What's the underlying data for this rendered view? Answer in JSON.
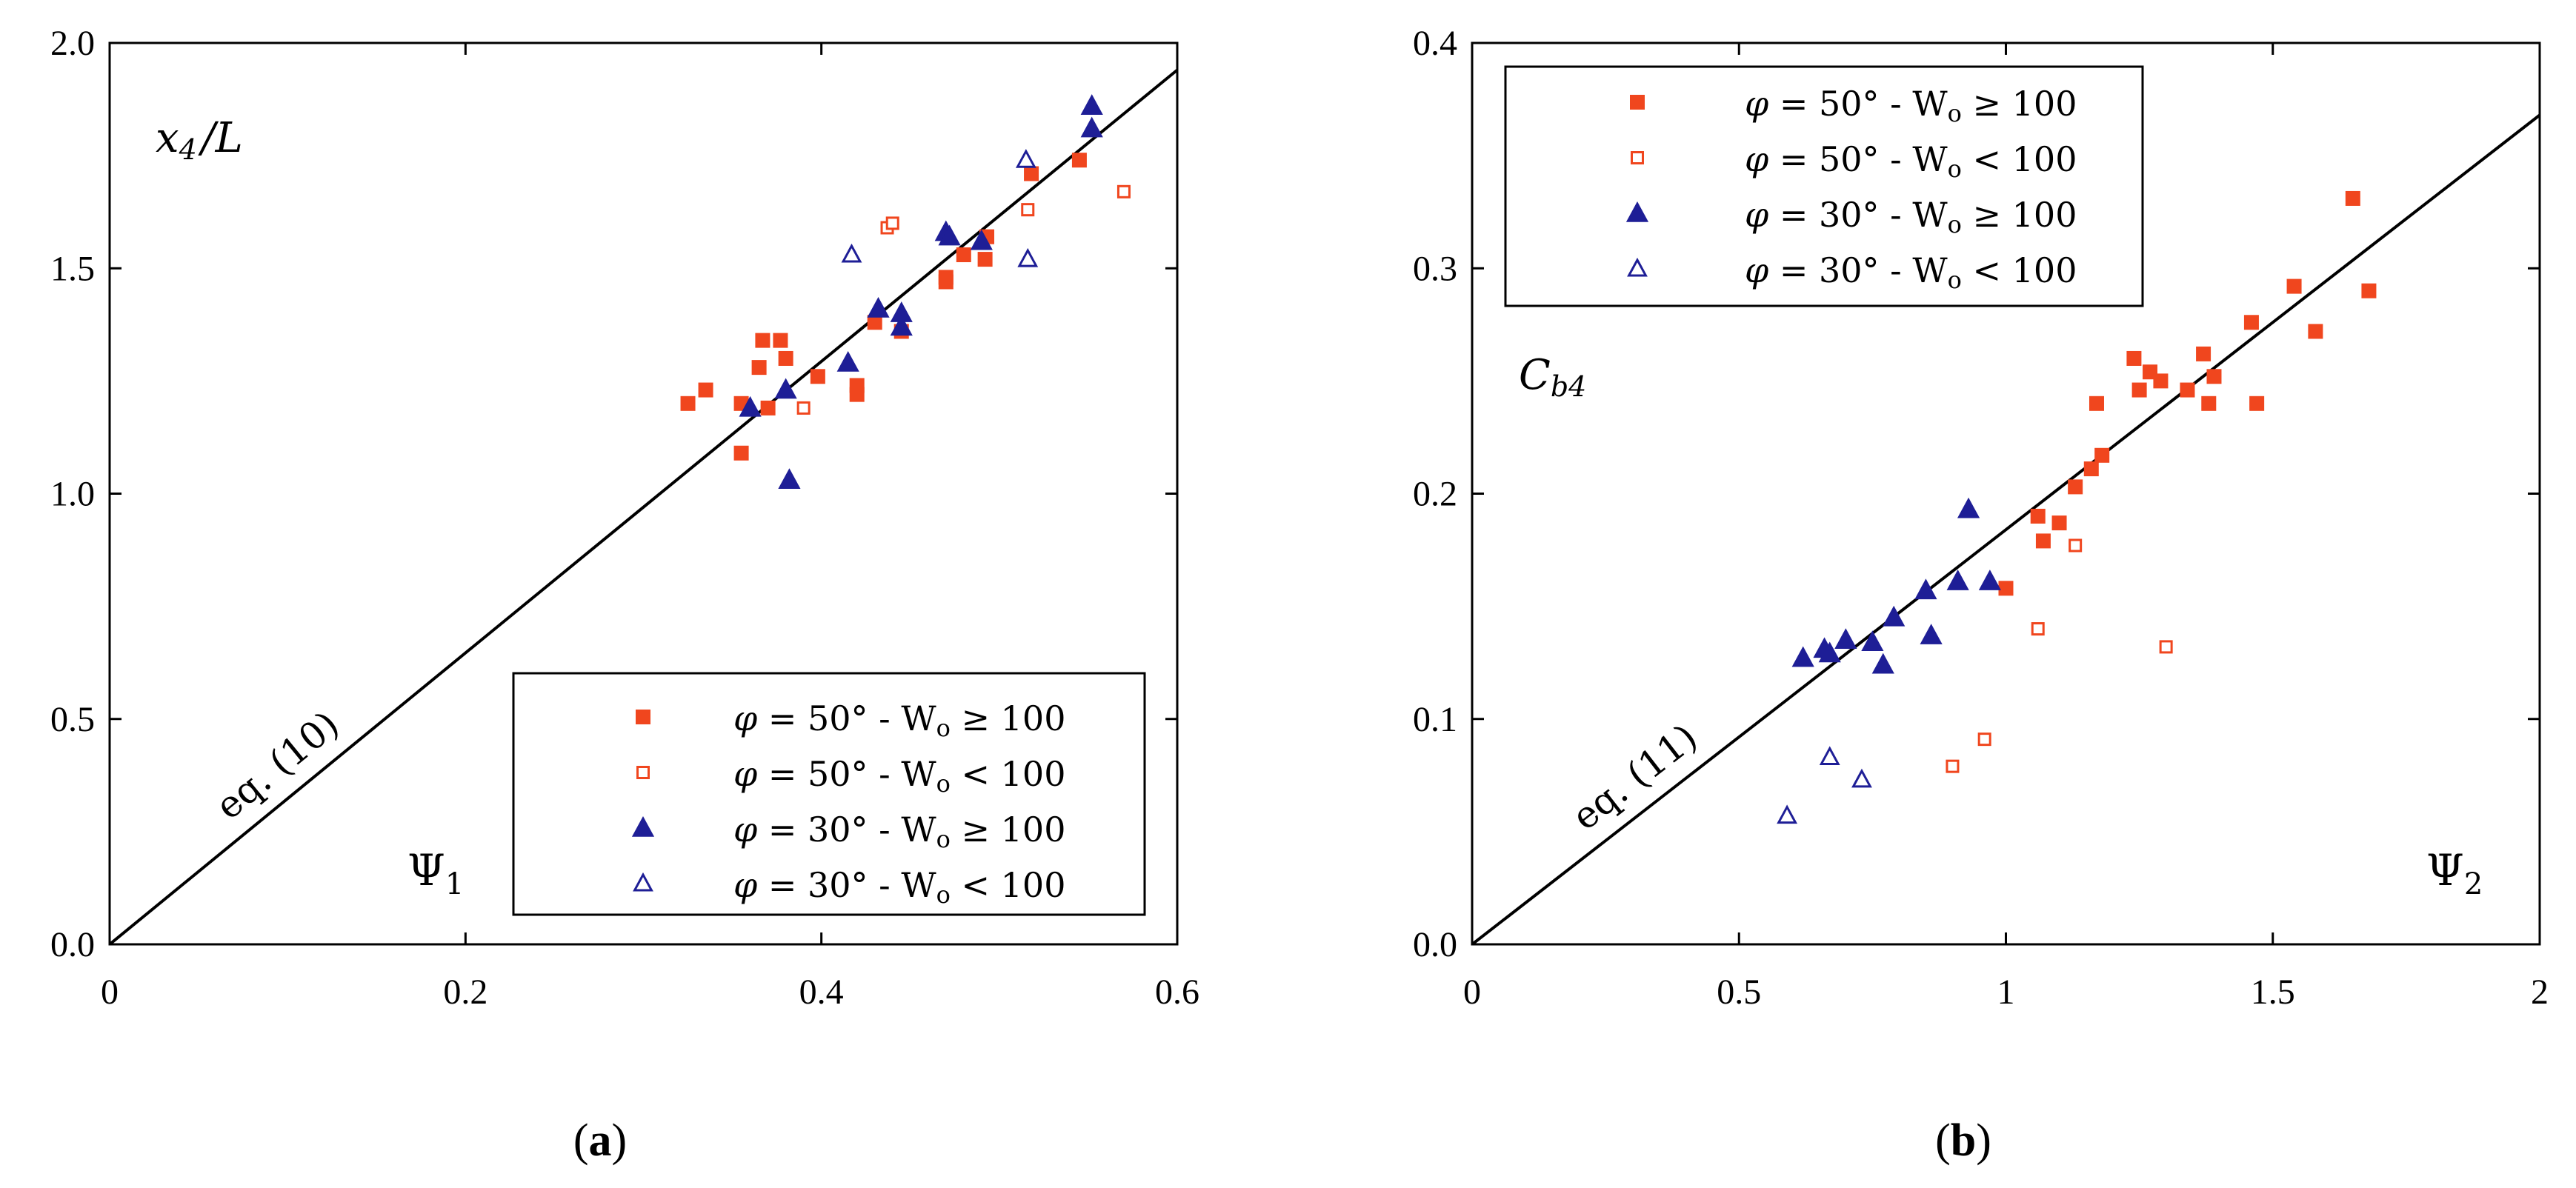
{
  "figure": {
    "panel_labels": [
      "(a)",
      "(b)"
    ],
    "colors": {
      "orange": "#f0461e",
      "blue": "#1e1e96",
      "line": "#000000"
    }
  },
  "chart_data": [
    {
      "type": "scatter",
      "panel": "(a)",
      "ylabel": "x4/L",
      "ylabel_main": "x",
      "ylabel_sub": "4",
      "ylabel_tail": "/L",
      "xlabel": "Ψ1",
      "xlabel_main": "Ψ",
      "xlabel_sub": "1",
      "xlim": [
        0,
        0.6
      ],
      "ylim": [
        0,
        2.0
      ],
      "xticks": [
        0,
        0.2,
        0.4,
        0.6
      ],
      "xtick_labels": [
        "0",
        "0.2",
        "0.4",
        "0.6"
      ],
      "yticks": [
        0,
        0.5,
        1.0,
        1.5,
        2.0
      ],
      "ytick_labels": [
        "0.0",
        "0.5",
        "1.0",
        "1.5",
        "2.0"
      ],
      "fit_line": {
        "label": "eq. (10)",
        "x": [
          0,
          0.6
        ],
        "y": [
          0,
          1.94
        ]
      },
      "legend_position": "bottom-right",
      "series": [
        {
          "name": "φ = 50° - Wo ≥ 100",
          "angle": "50°",
          "op": "≥",
          "marker": "square",
          "filled": true,
          "points": [
            [
              0.325,
              1.2
            ],
            [
              0.335,
              1.23
            ],
            [
              0.355,
              1.2
            ],
            [
              0.355,
              1.09
            ],
            [
              0.365,
              1.28
            ],
            [
              0.367,
              1.34
            ],
            [
              0.37,
              1.19
            ],
            [
              0.377,
              1.34
            ],
            [
              0.38,
              1.3
            ],
            [
              0.398,
              1.26
            ],
            [
              0.42,
              1.24
            ],
            [
              0.42,
              1.22
            ],
            [
              0.43,
              1.38
            ],
            [
              0.445,
              1.36
            ],
            [
              0.47,
              1.47
            ],
            [
              0.47,
              1.48
            ],
            [
              0.48,
              1.53
            ],
            [
              0.492,
              1.52
            ],
            [
              0.493,
              1.57
            ],
            [
              0.518,
              1.71
            ],
            [
              0.545,
              1.74
            ]
          ]
        },
        {
          "name": "φ = 50° - Wo < 100",
          "angle": "50°",
          "op": "<",
          "marker": "square",
          "filled": false,
          "points": [
            [
              0.39,
              1.19
            ],
            [
              0.437,
              1.59
            ],
            [
              0.44,
              1.6
            ],
            [
              0.516,
              1.63
            ],
            [
              0.57,
              1.67
            ]
          ]
        },
        {
          "name": "φ = 30° - Wo ≥ 100",
          "angle": "30°",
          "op": "≥",
          "marker": "triangle",
          "filled": true,
          "points": [
            [
              0.36,
              1.19
            ],
            [
              0.38,
              1.23
            ],
            [
              0.382,
              1.03
            ],
            [
              0.415,
              1.29
            ],
            [
              0.432,
              1.41
            ],
            [
              0.445,
              1.4
            ],
            [
              0.445,
              1.37
            ],
            [
              0.47,
              1.58
            ],
            [
              0.472,
              1.57
            ],
            [
              0.49,
              1.56
            ],
            [
              0.552,
              1.81
            ],
            [
              0.552,
              1.86
            ]
          ]
        },
        {
          "name": "φ = 30° - Wo < 100",
          "angle": "30°",
          "op": "<",
          "marker": "triangle",
          "filled": false,
          "points": [
            [
              0.417,
              1.53
            ],
            [
              0.515,
              1.74
            ],
            [
              0.516,
              1.52
            ]
          ]
        }
      ]
    },
    {
      "type": "scatter",
      "panel": "(b)",
      "ylabel": "Cb4",
      "ylabel_main": "C",
      "ylabel_sub": "b4",
      "ylabel_tail": "",
      "xlabel": "Ψ2",
      "xlabel_main": "Ψ",
      "xlabel_sub": "2",
      "xlim": [
        0,
        2
      ],
      "ylim": [
        0,
        0.4
      ],
      "xticks": [
        0,
        0.5,
        1,
        1.5,
        2
      ],
      "xtick_labels": [
        "0",
        "0.5",
        "1",
        "1.5",
        "2"
      ],
      "yticks": [
        0,
        0.1,
        0.2,
        0.3,
        0.4
      ],
      "ytick_labels": [
        "0.0",
        "0.1",
        "0.2",
        "0.3",
        "0.4"
      ],
      "fit_line": {
        "label": "eq. (11)",
        "x": [
          0,
          2
        ],
        "y": [
          0,
          0.368
        ]
      },
      "legend_position": "top-left",
      "series": [
        {
          "name": "φ = 50° - Wo ≥ 100",
          "angle": "50°",
          "op": "≥",
          "marker": "square",
          "filled": true,
          "points": [
            [
              1.0,
              0.158
            ],
            [
              1.06,
              0.19
            ],
            [
              1.07,
              0.179
            ],
            [
              1.1,
              0.187
            ],
            [
              1.13,
              0.203
            ],
            [
              1.16,
              0.211
            ],
            [
              1.18,
              0.217
            ],
            [
              1.17,
              0.24
            ],
            [
              1.24,
              0.26
            ],
            [
              1.25,
              0.246
            ],
            [
              1.27,
              0.254
            ],
            [
              1.29,
              0.25
            ],
            [
              1.34,
              0.246
            ],
            [
              1.37,
              0.262
            ],
            [
              1.38,
              0.24
            ],
            [
              1.39,
              0.252
            ],
            [
              1.46,
              0.276
            ],
            [
              1.47,
              0.24
            ],
            [
              1.54,
              0.292
            ],
            [
              1.58,
              0.272
            ],
            [
              1.65,
              0.331
            ],
            [
              1.68,
              0.29
            ]
          ]
        },
        {
          "name": "φ = 50° - Wo < 100",
          "angle": "50°",
          "op": "<",
          "marker": "square",
          "filled": false,
          "points": [
            [
              0.9,
              0.079
            ],
            [
              0.96,
              0.091
            ],
            [
              1.06,
              0.14
            ],
            [
              1.13,
              0.177
            ],
            [
              1.3,
              0.132
            ]
          ]
        },
        {
          "name": "φ = 30° - Wo ≥ 100",
          "angle": "30°",
          "op": "≥",
          "marker": "triangle",
          "filled": true,
          "points": [
            [
              0.62,
              0.127
            ],
            [
              0.66,
              0.131
            ],
            [
              0.67,
              0.129
            ],
            [
              0.7,
              0.135
            ],
            [
              0.75,
              0.134
            ],
            [
              0.77,
              0.124
            ],
            [
              0.79,
              0.145
            ],
            [
              0.85,
              0.157
            ],
            [
              0.86,
              0.137
            ],
            [
              0.91,
              0.161
            ],
            [
              0.93,
              0.193
            ],
            [
              0.97,
              0.161
            ]
          ]
        },
        {
          "name": "φ = 30° - Wo < 100",
          "angle": "30°",
          "op": "<",
          "marker": "triangle",
          "filled": false,
          "points": [
            [
              0.59,
              0.057
            ],
            [
              0.67,
              0.083
            ],
            [
              0.73,
              0.073
            ]
          ]
        }
      ]
    }
  ]
}
